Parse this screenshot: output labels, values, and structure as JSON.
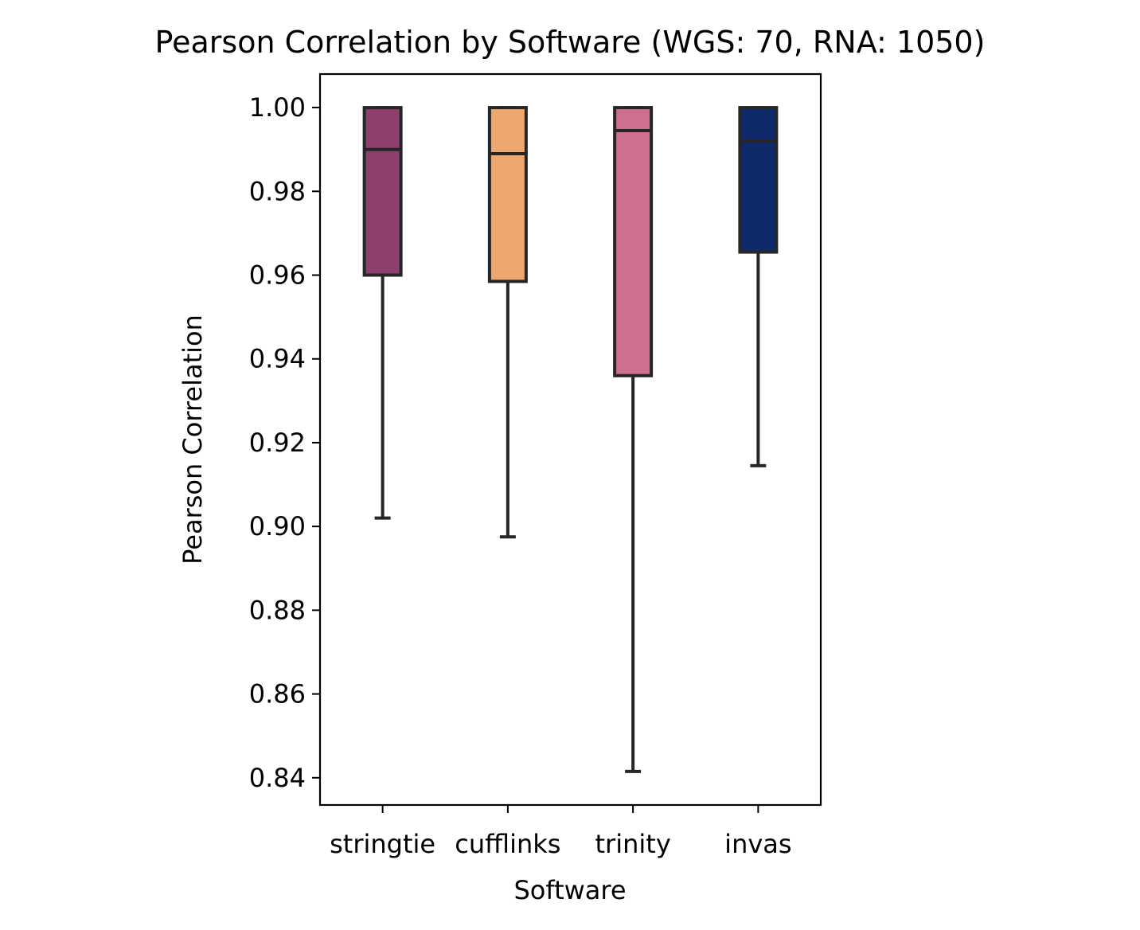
{
  "chart_data": {
    "type": "box",
    "title": "Pearson Correlation by Software (WGS: 70, RNA: 1050)",
    "xlabel": "Software",
    "ylabel": "Pearson Correlation",
    "ylim": [
      0.8335,
      1.008
    ],
    "yticks": [
      0.84,
      0.86,
      0.88,
      0.9,
      0.92,
      0.94,
      0.96,
      0.98,
      1.0
    ],
    "ytick_labels": [
      "0.84",
      "0.86",
      "0.88",
      "0.90",
      "0.92",
      "0.94",
      "0.96",
      "0.98",
      "1.00"
    ],
    "grid": false,
    "categories": [
      "stringtie",
      "cufflinks",
      "trinity",
      "invas"
    ],
    "series": [
      {
        "category": "stringtie",
        "color": "#8e3f6b",
        "whisker_low": 0.902,
        "q1": 0.96,
        "median": 0.99,
        "q3": 1.0,
        "whisker_high": 1.0
      },
      {
        "category": "cufflinks",
        "color": "#eea86f",
        "whisker_low": 0.8975,
        "q1": 0.9585,
        "median": 0.989,
        "q3": 1.0,
        "whisker_high": 1.0
      },
      {
        "category": "trinity",
        "color": "#ce6f8d",
        "whisker_low": 0.8415,
        "q1": 0.936,
        "median": 0.9945,
        "q3": 1.0,
        "whisker_high": 1.0
      },
      {
        "category": "invas",
        "color": "#0e2a6b",
        "whisker_low": 0.9145,
        "q1": 0.9655,
        "median": 0.992,
        "q3": 1.0,
        "whisker_high": 1.0
      }
    ]
  }
}
